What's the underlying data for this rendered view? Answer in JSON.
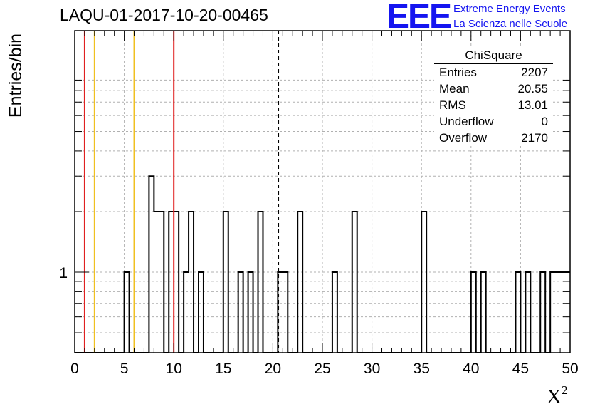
{
  "title": "LAQU-01-2017-10-20-00465",
  "brand": {
    "logo_text": "EEE",
    "line1": "Extreme Energy Events",
    "line2": "La Scienza nelle Scuole",
    "color": "#1515f0"
  },
  "stats_box": {
    "title": "ChiSquare",
    "rows": [
      {
        "label": "Entries",
        "value": "2207"
      },
      {
        "label": "Mean",
        "value": "20.55"
      },
      {
        "label": "RMS",
        "value": "13.01"
      },
      {
        "label": "Underflow",
        "value": "0"
      },
      {
        "label": "Overflow",
        "value": "2170"
      }
    ]
  },
  "chart_data": {
    "type": "bar",
    "title": "LAQU-01-2017-10-20-00465",
    "xlabel": "X",
    "xlabel_superscript": "2",
    "ylabel": "Entries/bin",
    "xlim": [
      0,
      50
    ],
    "ylog": true,
    "ylim_log10": [
      -0.4,
      1.2
    ],
    "grid": true,
    "bin_width": 0.5,
    "x_ticks": [
      "0",
      "5",
      "10",
      "15",
      "20",
      "25",
      "30",
      "35",
      "40",
      "45",
      "50"
    ],
    "y_ticks": [
      "1"
    ],
    "bins": [
      {
        "x": 5.0,
        "y": 1
      },
      {
        "x": 7.5,
        "y": 3
      },
      {
        "x": 8.0,
        "y": 2
      },
      {
        "x": 8.5,
        "y": 2
      },
      {
        "x": 9.5,
        "y": 2
      },
      {
        "x": 10.0,
        "y": 2
      },
      {
        "x": 11.0,
        "y": 1
      },
      {
        "x": 11.5,
        "y": 2
      },
      {
        "x": 12.5,
        "y": 1
      },
      {
        "x": 15.0,
        "y": 2
      },
      {
        "x": 16.5,
        "y": 1
      },
      {
        "x": 17.5,
        "y": 1
      },
      {
        "x": 18.5,
        "y": 2
      },
      {
        "x": 20.5,
        "y": 1
      },
      {
        "x": 21.0,
        "y": 1
      },
      {
        "x": 22.5,
        "y": 2
      },
      {
        "x": 26.0,
        "y": 1
      },
      {
        "x": 28.0,
        "y": 2
      },
      {
        "x": 35.0,
        "y": 2
      },
      {
        "x": 40.0,
        "y": 1
      },
      {
        "x": 41.0,
        "y": 1
      },
      {
        "x": 44.5,
        "y": 1
      },
      {
        "x": 45.5,
        "y": 1
      },
      {
        "x": 47.0,
        "y": 1
      },
      {
        "x": 48.0,
        "y": 1
      },
      {
        "x": 48.5,
        "y": 1
      },
      {
        "x": 49.0,
        "y": 1
      },
      {
        "x": 49.5,
        "y": 1
      }
    ],
    "markers": [
      {
        "x": 1.0,
        "color": "#e02020",
        "style": "solid"
      },
      {
        "x": 2.0,
        "color": "#f0c020",
        "style": "solid"
      },
      {
        "x": 6.0,
        "color": "#f0c020",
        "style": "solid"
      },
      {
        "x": 10.0,
        "color": "#e02020",
        "style": "solid"
      },
      {
        "x": 20.55,
        "color": "#000000",
        "style": "dashed"
      }
    ]
  }
}
